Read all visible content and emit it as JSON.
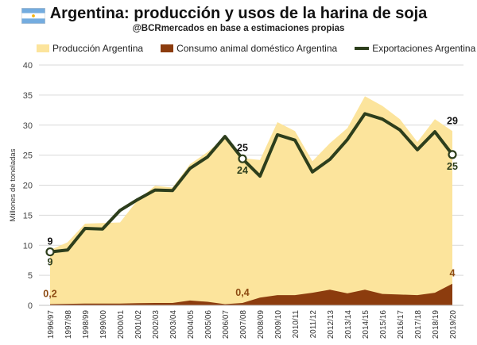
{
  "chart_data": {
    "type": "area",
    "title": "Argentina: producción y usos de la harina de soja",
    "subtitle": "@BCRmercados en base a estimaciones propias",
    "ylabel": "Millones de toneladas",
    "xlabel": "",
    "ylim": [
      0,
      40
    ],
    "yticks": [
      "0",
      "5",
      "10",
      "15",
      "20",
      "25",
      "30",
      "35",
      "40"
    ],
    "grid": true,
    "legend_position": "top",
    "categories": [
      "1996/97",
      "1997/98",
      "1998/99",
      "1999/00",
      "2000/01",
      "2001/02",
      "2002/03",
      "2003/04",
      "2004/05",
      "2005/06",
      "2006/07",
      "2007/08",
      "2008/09",
      "2009/10",
      "2010/11",
      "2011/12",
      "2012/13",
      "2013/14",
      "2014/15",
      "2015/16",
      "2016/17",
      "2017/18",
      "2018/19",
      "2019/20"
    ],
    "series": [
      {
        "name": "Producción Argentina",
        "kind": "area",
        "color": "#FCE49C",
        "values": [
          9.2,
          10.5,
          13.6,
          13.7,
          13.8,
          17.5,
          19.9,
          19.6,
          23.5,
          25.5,
          28,
          24.5,
          24.2,
          30.5,
          29,
          24,
          27,
          29.5,
          34.8,
          33.2,
          31,
          27.2,
          31,
          29
        ]
      },
      {
        "name": "Consumo animal doméstico Argentina",
        "kind": "area",
        "color": "#8C3C0E",
        "values": [
          0.2,
          0.25,
          0.3,
          0.3,
          0.3,
          0.35,
          0.4,
          0.4,
          0.8,
          0.6,
          0.2,
          0.4,
          1.3,
          1.7,
          1.7,
          2.1,
          2.6,
          2,
          2.6,
          1.9,
          1.8,
          1.7,
          2.1,
          3.6
        ]
      },
      {
        "name": "Exportaciones Argentina",
        "kind": "line",
        "color": "#2D3E1C",
        "values": [
          8.9,
          9.2,
          12.8,
          12.7,
          15.8,
          17.6,
          19.2,
          19.1,
          22.8,
          24.7,
          28.1,
          24.4,
          21.5,
          28.4,
          27.5,
          22.2,
          24.3,
          27.6,
          31.9,
          31,
          29.2,
          25.9,
          28.9,
          25.1
        ]
      }
    ],
    "data_labels": [
      {
        "text": "9",
        "series": "Exportaciones Argentina",
        "index": 0,
        "side": "above",
        "color": "#111111"
      },
      {
        "text": "9",
        "series": "Producción Argentina",
        "index": 0,
        "side": "below",
        "color": "#2D3E1C"
      },
      {
        "text": "0,2",
        "series": "Consumo animal doméstico Argentina",
        "index": 0,
        "side": "above",
        "color": "#8C4A12"
      },
      {
        "text": "25",
        "series": "Producción Argentina",
        "index": 11,
        "side": "above",
        "color": "#111111"
      },
      {
        "text": "24",
        "series": "Exportaciones Argentina",
        "index": 11,
        "side": "below",
        "color": "#2D3E1C"
      },
      {
        "text": "0,4",
        "series": "Consumo animal doméstico Argentina",
        "index": 11,
        "side": "above",
        "color": "#8C4A12"
      },
      {
        "text": "29",
        "series": "Producción Argentina",
        "index": 23,
        "side": "above",
        "color": "#111111"
      },
      {
        "text": "25",
        "series": "Exportaciones Argentina",
        "index": 23,
        "side": "below",
        "color": "#2D3E1C"
      },
      {
        "text": "4",
        "series": "Consumo animal doméstico Argentina",
        "index": 23,
        "side": "above",
        "color": "#8C4A12"
      }
    ],
    "markers": [
      {
        "series": "Exportaciones Argentina",
        "index": 0
      },
      {
        "series": "Exportaciones Argentina",
        "index": 11
      },
      {
        "series": "Exportaciones Argentina",
        "index": 23
      }
    ]
  },
  "flag_colors": {
    "blue": "#74ACDF",
    "white": "#FFFFFF",
    "sun": "#F6B40E"
  },
  "flag_icon": "argentina-flag-icon"
}
